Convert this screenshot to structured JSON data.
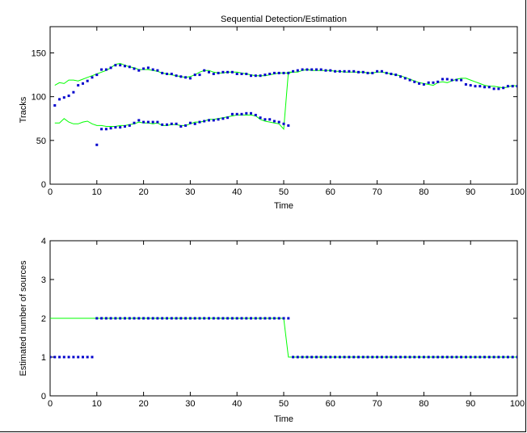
{
  "chart_data": [
    {
      "type": "line",
      "title": "Sequential Detection/Estimation",
      "xlabel": "Time",
      "ylabel": "Tracks",
      "xlim": [
        0,
        100
      ],
      "ylim": [
        0,
        180
      ],
      "xticks": [
        0,
        10,
        20,
        30,
        40,
        50,
        60,
        70,
        80,
        90,
        100
      ],
      "yticks": [
        0,
        50,
        100,
        150
      ],
      "grid": false,
      "series": [
        {
          "style": "solid",
          "color": "#00ff00",
          "x": [
            1,
            2,
            3,
            4,
            5,
            6,
            7,
            8,
            9,
            10,
            11,
            12,
            13,
            14,
            15,
            16,
            17,
            18,
            19,
            20,
            21,
            22,
            23,
            24,
            25,
            26,
            27,
            28,
            29,
            30,
            31,
            32,
            33,
            34,
            35,
            36,
            37,
            38,
            39,
            40,
            41,
            42,
            43,
            44,
            45,
            46,
            47,
            48,
            49,
            50,
            51,
            52,
            53,
            54,
            55,
            56,
            57,
            58,
            59,
            60,
            61,
            62,
            63,
            64,
            65,
            66,
            67,
            68,
            69,
            70,
            71,
            72,
            73,
            74,
            75,
            76,
            77,
            78,
            79,
            80,
            81,
            82,
            83,
            84,
            85,
            86,
            87,
            88,
            89,
            90,
            91,
            92,
            93,
            94,
            95,
            96,
            97,
            98,
            99,
            100
          ],
          "y": [
            113,
            116,
            115,
            119,
            119,
            118,
            120,
            122,
            124,
            126,
            128,
            130,
            133,
            137,
            138,
            136,
            134,
            133,
            131,
            131,
            131,
            130,
            129,
            127,
            126,
            125,
            124,
            123,
            122,
            123,
            125,
            128,
            130,
            130,
            128,
            127,
            127,
            128,
            128,
            128,
            127,
            126,
            125,
            124,
            124,
            124,
            125,
            126,
            127,
            127,
            127,
            128,
            128,
            130,
            131,
            130,
            130,
            130,
            130,
            130,
            129,
            129,
            128,
            128,
            128,
            128,
            128,
            127,
            127,
            128,
            128,
            127,
            126,
            125,
            124,
            122,
            120,
            118,
            116,
            115,
            114,
            113,
            116,
            117,
            116,
            118,
            120,
            121,
            121,
            119,
            117,
            115,
            113,
            112,
            112,
            111,
            110,
            111,
            113,
            112
          ]
        },
        {
          "style": "solid",
          "color": "#00ff00",
          "x": [
            1,
            2,
            3,
            4,
            5,
            6,
            7,
            8,
            9,
            10,
            11,
            12,
            13,
            14,
            15,
            16,
            17,
            18,
            19,
            20,
            21,
            22,
            23,
            24,
            25,
            26,
            27,
            28,
            29,
            30,
            31,
            32,
            33,
            34,
            35,
            36,
            37,
            38,
            39,
            40,
            41,
            42,
            43,
            44,
            45,
            46,
            47,
            48,
            49,
            50,
            51,
            52
          ],
          "y": [
            70,
            70,
            75,
            71,
            69,
            69,
            71,
            72,
            69,
            67,
            67,
            66,
            66,
            66,
            67,
            67,
            68,
            69,
            71,
            70,
            70,
            69,
            70,
            67,
            67,
            68,
            68,
            67,
            67,
            69,
            71,
            71,
            72,
            74,
            74,
            75,
            76,
            77,
            78,
            79,
            79,
            79,
            79,
            78,
            74,
            72,
            71,
            70,
            69,
            63,
            128,
            128
          ]
        },
        {
          "style": "dots",
          "color": "#0000cc",
          "x": [
            1,
            2,
            3,
            4,
            5,
            6,
            7,
            8,
            9,
            10,
            11,
            12,
            13,
            14,
            15,
            16,
            17,
            18,
            19,
            20,
            21,
            22,
            23,
            24,
            25,
            26,
            27,
            28,
            29,
            30,
            31,
            32,
            33,
            34,
            35,
            36,
            37,
            38,
            39,
            40,
            41,
            42,
            43,
            44,
            45,
            46,
            47,
            48,
            49,
            50,
            51,
            52,
            53,
            54,
            55,
            56,
            57,
            58,
            59,
            60,
            61,
            62,
            63,
            64,
            65,
            66,
            67,
            68,
            69,
            70,
            71,
            72,
            73,
            74,
            75,
            76,
            77,
            78,
            79,
            80,
            81,
            82,
            83,
            84,
            85,
            86,
            87,
            88,
            89,
            90,
            91,
            92,
            93,
            94,
            95,
            96,
            97,
            98,
            99,
            100
          ],
          "y": [
            90,
            97,
            99,
            101,
            105,
            113,
            115,
            118,
            122,
            125,
            131,
            131,
            133,
            136,
            136,
            135,
            134,
            132,
            130,
            132,
            133,
            131,
            130,
            127,
            126,
            126,
            124,
            123,
            122,
            121,
            125,
            125,
            130,
            128,
            126,
            127,
            128,
            128,
            128,
            126,
            126,
            126,
            124,
            124,
            124,
            125,
            126,
            127,
            127,
            127,
            127,
            129,
            130,
            131,
            131,
            131,
            131,
            131,
            130,
            130,
            129,
            129,
            129,
            129,
            129,
            128,
            128,
            127,
            127,
            129,
            129,
            127,
            126,
            125,
            123,
            121,
            119,
            117,
            115,
            114,
            116,
            116,
            117,
            120,
            120,
            119,
            119,
            119,
            114,
            113,
            112,
            112,
            111,
            111,
            109,
            109,
            110,
            112,
            112,
            112
          ]
        },
        {
          "style": "dots",
          "color": "#0000cc",
          "x": [
            10,
            11,
            12,
            13,
            14,
            15,
            16,
            17,
            18,
            19,
            20,
            21,
            22,
            23,
            24,
            25,
            26,
            27,
            28,
            29,
            30,
            31,
            32,
            33,
            34,
            35,
            36,
            37,
            38,
            39,
            40,
            41,
            42,
            43,
            44,
            45,
            46,
            47,
            48,
            49,
            50,
            51
          ],
          "y": [
            45,
            63,
            63,
            64,
            65,
            65,
            66,
            67,
            70,
            73,
            71,
            71,
            71,
            71,
            68,
            68,
            69,
            69,
            66,
            67,
            70,
            69,
            71,
            72,
            73,
            73,
            74,
            75,
            76,
            80,
            80,
            80,
            81,
            81,
            79,
            76,
            74,
            74,
            72,
            71,
            69,
            67
          ]
        }
      ]
    },
    {
      "type": "line",
      "title": "",
      "xlabel": "Time",
      "ylabel": "Estimated number of sources",
      "xlim": [
        0,
        100
      ],
      "ylim": [
        0,
        4
      ],
      "xticks": [
        0,
        10,
        20,
        30,
        40,
        50,
        60,
        70,
        80,
        90,
        100
      ],
      "yticks": [
        0,
        1,
        2,
        3,
        4
      ],
      "grid": false,
      "series": [
        {
          "style": "solid",
          "color": "#00ff00",
          "x": [
            0,
            50,
            51,
            100
          ],
          "y": [
            2,
            2,
            1,
            1
          ]
        },
        {
          "style": "dots",
          "color": "#0000cc",
          "x": [
            0,
            1,
            2,
            3,
            4,
            5,
            6,
            7,
            8,
            9,
            10,
            11,
            12,
            13,
            14,
            15,
            16,
            17,
            18,
            19,
            20,
            21,
            22,
            23,
            24,
            25,
            26,
            27,
            28,
            29,
            30,
            31,
            32,
            33,
            34,
            35,
            36,
            37,
            38,
            39,
            40,
            41,
            42,
            43,
            44,
            45,
            46,
            47,
            48,
            49,
            50,
            51,
            52,
            53,
            54,
            55,
            56,
            57,
            58,
            59,
            60,
            61,
            62,
            63,
            64,
            65,
            66,
            67,
            68,
            69,
            70,
            71,
            72,
            73,
            74,
            75,
            76,
            77,
            78,
            79,
            80,
            81,
            82,
            83,
            84,
            85,
            86,
            87,
            88,
            89,
            90,
            91,
            92,
            93,
            94,
            95,
            96,
            97,
            98,
            99,
            100
          ],
          "y": [
            1,
            1,
            1,
            1,
            1,
            1,
            1,
            1,
            1,
            1,
            2,
            2,
            2,
            2,
            2,
            2,
            2,
            2,
            2,
            2,
            2,
            2,
            2,
            2,
            2,
            2,
            2,
            2,
            2,
            2,
            2,
            2,
            2,
            2,
            2,
            2,
            2,
            2,
            2,
            2,
            2,
            2,
            2,
            2,
            2,
            2,
            2,
            2,
            2,
            2,
            2,
            2,
            1,
            1,
            1,
            1,
            1,
            1,
            1,
            1,
            1,
            1,
            1,
            1,
            1,
            1,
            1,
            1,
            1,
            1,
            1,
            1,
            1,
            1,
            1,
            1,
            1,
            1,
            1,
            1,
            1,
            1,
            1,
            1,
            1,
            1,
            1,
            1,
            1,
            1,
            1,
            1,
            1,
            1,
            1,
            1,
            1,
            1,
            1,
            1,
            1
          ]
        }
      ]
    }
  ]
}
